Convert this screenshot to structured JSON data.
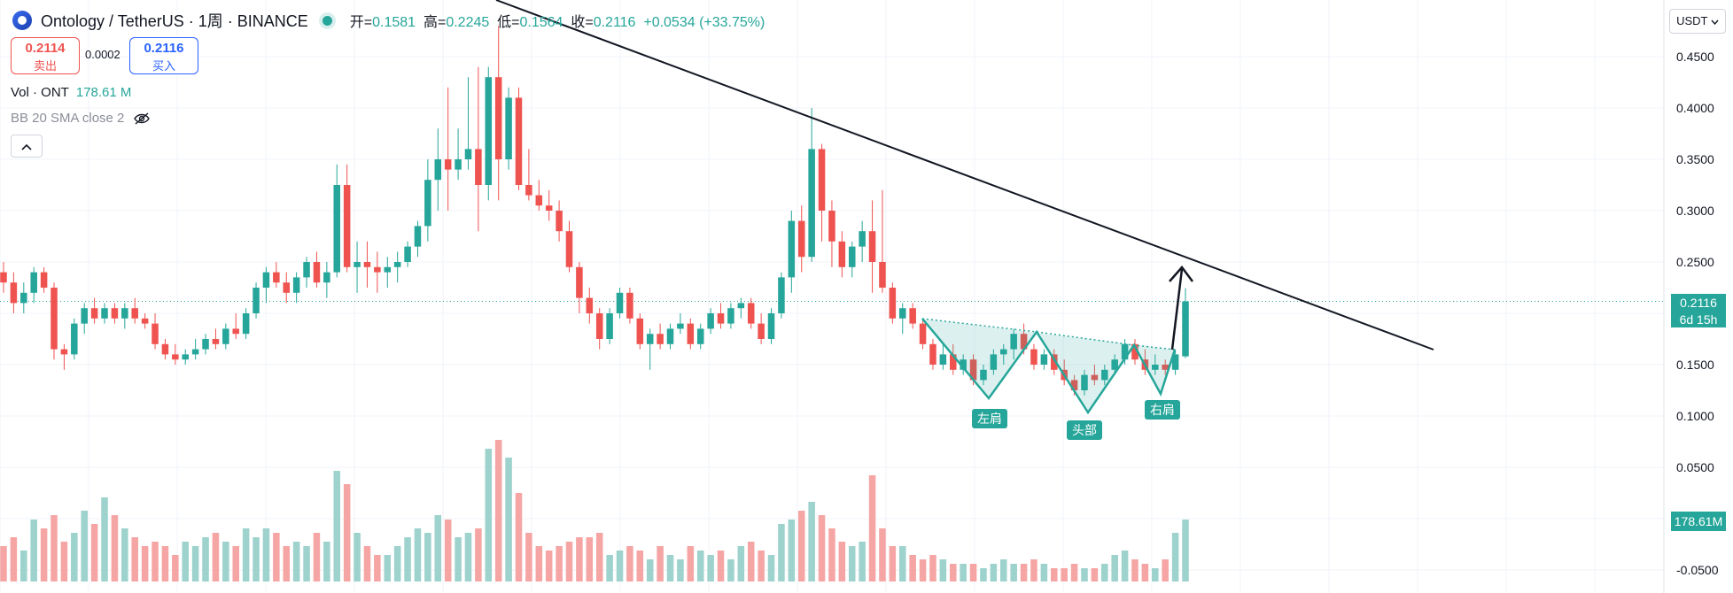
{
  "header": {
    "symbol": "Ontology / TetherUS · 1周 · BINANCE",
    "ohlc": {
      "open_label": "开=",
      "open": "0.1581",
      "high_label": "高=",
      "high": "0.2245",
      "low_label": "低=",
      "low": "0.1564",
      "close_label": "收=",
      "close": "0.2116",
      "change": "+0.0534 (+33.75%)"
    }
  },
  "trade": {
    "sell_price": "0.2114",
    "sell_label": "卖出",
    "spread": "0.0002",
    "buy_price": "0.2116",
    "buy_label": "买入"
  },
  "indicators": {
    "volume_label": "Vol · ONT",
    "volume_value": "178.61 M",
    "bb_label": "BB 20 SMA close 2"
  },
  "price_axis": {
    "currency": "USDT",
    "ticks": [
      "0.4500",
      "0.4000",
      "0.3500",
      "0.3000",
      "0.2500",
      "0.1500",
      "0.1000",
      "0.0500",
      "-0.0500"
    ],
    "last_price_tag": "0.2116",
    "countdown_tag": "6d 15h",
    "volume_tag": "178.61M"
  },
  "pattern_labels": {
    "left_shoulder": "左肩",
    "head": "头部",
    "right_shoulder": "右肩"
  },
  "colors": {
    "up": "#26a69a",
    "down": "#ef5350",
    "up_vol": "#9dd2cd",
    "down_vol": "#f5a6a4"
  },
  "chart_data": {
    "type": "candlestick",
    "title": "Ontology / TetherUS · 1周 · BINANCE",
    "y_ticks": [
      0.45,
      0.4,
      0.35,
      0.3,
      0.25,
      0.15,
      0.1,
      0.05
    ],
    "last_price": 0.2116,
    "candles": [
      [
        0.24,
        0.25,
        0.22,
        0.23,
        40
      ],
      [
        0.23,
        0.24,
        0.2,
        0.21,
        50
      ],
      [
        0.21,
        0.23,
        0.2,
        0.22,
        35
      ],
      [
        0.22,
        0.245,
        0.21,
        0.24,
        70
      ],
      [
        0.24,
        0.245,
        0.22,
        0.225,
        60
      ],
      [
        0.225,
        0.23,
        0.155,
        0.165,
        75
      ],
      [
        0.165,
        0.17,
        0.145,
        0.16,
        45
      ],
      [
        0.16,
        0.195,
        0.155,
        0.19,
        55
      ],
      [
        0.19,
        0.21,
        0.18,
        0.205,
        80
      ],
      [
        0.205,
        0.215,
        0.19,
        0.195,
        65
      ],
      [
        0.195,
        0.21,
        0.19,
        0.205,
        95
      ],
      [
        0.205,
        0.21,
        0.19,
        0.195,
        75
      ],
      [
        0.195,
        0.21,
        0.185,
        0.205,
        60
      ],
      [
        0.205,
        0.215,
        0.19,
        0.195,
        50
      ],
      [
        0.195,
        0.2,
        0.185,
        0.19,
        40
      ],
      [
        0.19,
        0.2,
        0.165,
        0.17,
        45
      ],
      [
        0.17,
        0.175,
        0.155,
        0.16,
        40
      ],
      [
        0.16,
        0.17,
        0.15,
        0.155,
        30
      ],
      [
        0.155,
        0.165,
        0.15,
        0.16,
        45
      ],
      [
        0.16,
        0.175,
        0.155,
        0.165,
        40
      ],
      [
        0.165,
        0.18,
        0.16,
        0.175,
        50
      ],
      [
        0.175,
        0.185,
        0.165,
        0.17,
        55
      ],
      [
        0.17,
        0.19,
        0.165,
        0.185,
        45
      ],
      [
        0.185,
        0.2,
        0.175,
        0.18,
        40
      ],
      [
        0.18,
        0.205,
        0.175,
        0.2,
        60
      ],
      [
        0.2,
        0.23,
        0.195,
        0.225,
        50
      ],
      [
        0.225,
        0.245,
        0.21,
        0.24,
        60
      ],
      [
        0.24,
        0.25,
        0.225,
        0.23,
        55
      ],
      [
        0.23,
        0.24,
        0.21,
        0.22,
        40
      ],
      [
        0.22,
        0.24,
        0.21,
        0.235,
        45
      ],
      [
        0.235,
        0.255,
        0.225,
        0.25,
        40
      ],
      [
        0.25,
        0.26,
        0.225,
        0.23,
        55
      ],
      [
        0.23,
        0.25,
        0.215,
        0.24,
        45
      ],
      [
        0.24,
        0.345,
        0.235,
        0.325,
        125
      ],
      [
        0.325,
        0.345,
        0.24,
        0.245,
        110
      ],
      [
        0.245,
        0.27,
        0.22,
        0.25,
        55
      ],
      [
        0.25,
        0.27,
        0.225,
        0.245,
        40
      ],
      [
        0.245,
        0.26,
        0.22,
        0.24,
        30
      ],
      [
        0.24,
        0.255,
        0.225,
        0.245,
        30
      ],
      [
        0.245,
        0.26,
        0.23,
        0.25,
        40
      ],
      [
        0.25,
        0.27,
        0.245,
        0.265,
        50
      ],
      [
        0.265,
        0.29,
        0.255,
        0.285,
        60
      ],
      [
        0.285,
        0.35,
        0.27,
        0.33,
        55
      ],
      [
        0.33,
        0.38,
        0.3,
        0.35,
        75
      ],
      [
        0.35,
        0.42,
        0.3,
        0.34,
        70
      ],
      [
        0.34,
        0.38,
        0.33,
        0.35,
        50
      ],
      [
        0.35,
        0.43,
        0.34,
        0.36,
        55
      ],
      [
        0.36,
        0.44,
        0.28,
        0.325,
        60
      ],
      [
        0.325,
        0.44,
        0.31,
        0.43,
        150
      ],
      [
        0.43,
        0.48,
        0.31,
        0.35,
        160
      ],
      [
        0.35,
        0.42,
        0.34,
        0.41,
        140
      ],
      [
        0.41,
        0.42,
        0.32,
        0.325,
        100
      ],
      [
        0.325,
        0.36,
        0.31,
        0.315,
        55
      ],
      [
        0.315,
        0.33,
        0.3,
        0.305,
        40
      ],
      [
        0.305,
        0.32,
        0.29,
        0.3,
        35
      ],
      [
        0.3,
        0.31,
        0.27,
        0.28,
        40
      ],
      [
        0.28,
        0.29,
        0.24,
        0.245,
        45
      ],
      [
        0.245,
        0.25,
        0.2,
        0.215,
        50
      ],
      [
        0.215,
        0.225,
        0.19,
        0.2,
        50
      ],
      [
        0.2,
        0.205,
        0.165,
        0.175,
        55
      ],
      [
        0.175,
        0.205,
        0.17,
        0.2,
        30
      ],
      [
        0.2,
        0.225,
        0.195,
        0.22,
        35
      ],
      [
        0.22,
        0.225,
        0.19,
        0.195,
        40
      ],
      [
        0.195,
        0.2,
        0.165,
        0.17,
        35
      ],
      [
        0.17,
        0.185,
        0.145,
        0.18,
        25
      ],
      [
        0.18,
        0.19,
        0.165,
        0.17,
        40
      ],
      [
        0.17,
        0.19,
        0.165,
        0.185,
        30
      ],
      [
        0.185,
        0.2,
        0.18,
        0.19,
        25
      ],
      [
        0.19,
        0.195,
        0.165,
        0.17,
        40
      ],
      [
        0.17,
        0.19,
        0.165,
        0.185,
        35
      ],
      [
        0.185,
        0.205,
        0.18,
        0.2,
        30
      ],
      [
        0.2,
        0.21,
        0.185,
        0.19,
        35
      ],
      [
        0.19,
        0.21,
        0.185,
        0.205,
        25
      ],
      [
        0.205,
        0.215,
        0.195,
        0.21,
        40
      ],
      [
        0.21,
        0.215,
        0.185,
        0.19,
        45
      ],
      [
        0.19,
        0.2,
        0.17,
        0.175,
        35
      ],
      [
        0.175,
        0.205,
        0.17,
        0.2,
        30
      ],
      [
        0.2,
        0.24,
        0.195,
        0.235,
        65
      ],
      [
        0.235,
        0.3,
        0.22,
        0.29,
        70
      ],
      [
        0.29,
        0.305,
        0.24,
        0.255,
        80
      ],
      [
        0.255,
        0.4,
        0.25,
        0.36,
        90
      ],
      [
        0.36,
        0.365,
        0.27,
        0.3,
        75
      ],
      [
        0.3,
        0.31,
        0.245,
        0.27,
        60
      ],
      [
        0.27,
        0.28,
        0.235,
        0.245,
        45
      ],
      [
        0.245,
        0.27,
        0.235,
        0.265,
        40
      ],
      [
        0.265,
        0.29,
        0.25,
        0.28,
        45
      ],
      [
        0.28,
        0.31,
        0.22,
        0.25,
        120
      ],
      [
        0.25,
        0.32,
        0.22,
        0.225,
        60
      ],
      [
        0.225,
        0.23,
        0.19,
        0.195,
        40
      ],
      [
        0.195,
        0.21,
        0.18,
        0.205,
        40
      ],
      [
        0.205,
        0.21,
        0.185,
        0.19,
        30
      ],
      [
        0.19,
        0.195,
        0.165,
        0.17,
        25
      ],
      [
        0.17,
        0.175,
        0.145,
        0.15,
        30
      ],
      [
        0.15,
        0.17,
        0.145,
        0.16,
        25
      ],
      [
        0.16,
        0.17,
        0.14,
        0.145,
        20
      ],
      [
        0.145,
        0.16,
        0.14,
        0.155,
        20
      ],
      [
        0.155,
        0.16,
        0.13,
        0.135,
        20
      ],
      [
        0.135,
        0.15,
        0.13,
        0.145,
        15
      ],
      [
        0.145,
        0.165,
        0.14,
        0.16,
        20
      ],
      [
        0.16,
        0.17,
        0.15,
        0.165,
        25
      ],
      [
        0.165,
        0.185,
        0.155,
        0.18,
        20
      ],
      [
        0.18,
        0.19,
        0.16,
        0.165,
        20
      ],
      [
        0.165,
        0.17,
        0.145,
        0.15,
        25
      ],
      [
        0.15,
        0.165,
        0.145,
        0.16,
        20
      ],
      [
        0.16,
        0.165,
        0.14,
        0.145,
        15
      ],
      [
        0.145,
        0.155,
        0.13,
        0.135,
        15
      ],
      [
        0.135,
        0.14,
        0.12,
        0.125,
        20
      ],
      [
        0.125,
        0.145,
        0.12,
        0.14,
        15
      ],
      [
        0.14,
        0.15,
        0.13,
        0.135,
        15
      ],
      [
        0.135,
        0.15,
        0.13,
        0.145,
        20
      ],
      [
        0.145,
        0.16,
        0.14,
        0.155,
        30
      ],
      [
        0.155,
        0.175,
        0.15,
        0.17,
        35
      ],
      [
        0.17,
        0.175,
        0.15,
        0.155,
        25
      ],
      [
        0.155,
        0.165,
        0.14,
        0.145,
        20
      ],
      [
        0.145,
        0.16,
        0.14,
        0.15,
        15
      ],
      [
        0.15,
        0.155,
        0.14,
        0.145,
        25
      ],
      [
        0.145,
        0.165,
        0.14,
        0.16,
        55
      ],
      [
        0.1581,
        0.2245,
        0.1564,
        0.2116,
        70
      ]
    ]
  }
}
